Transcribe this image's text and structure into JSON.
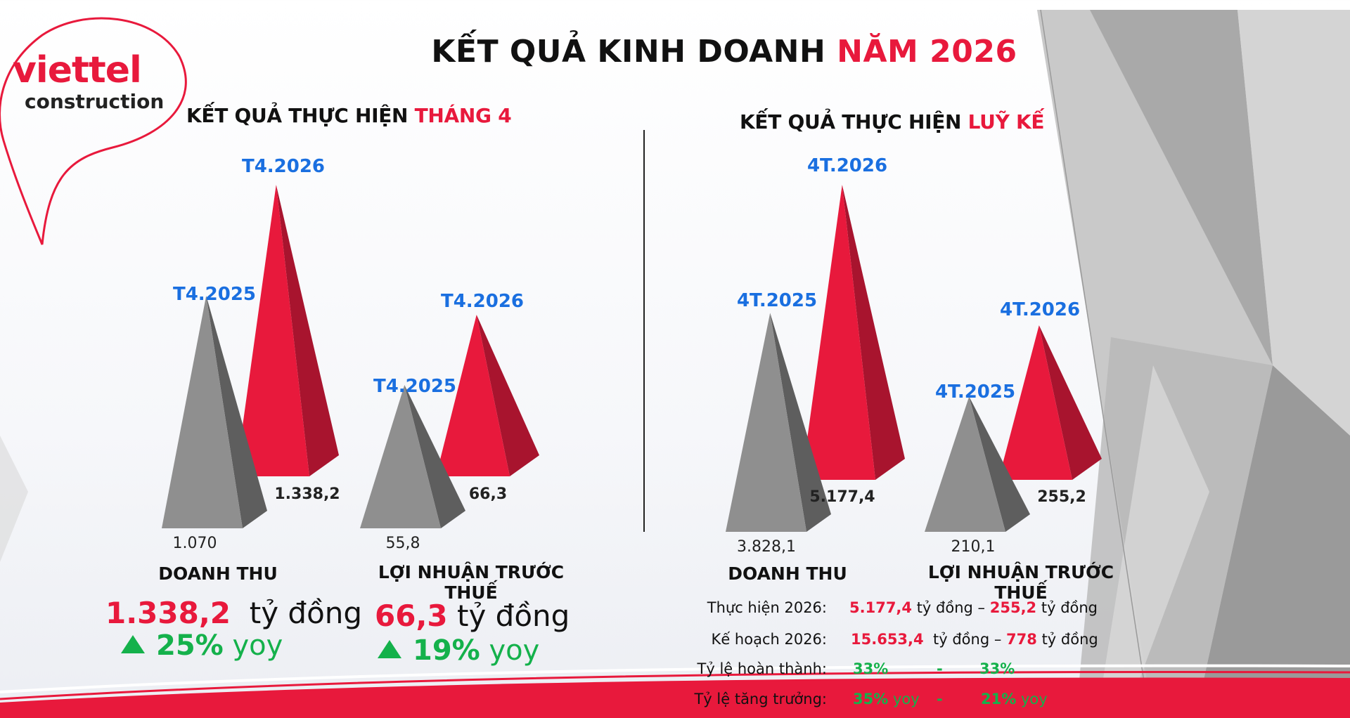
{
  "title": {
    "main": "KẾT QUẢ KINH DOANH",
    "highlight": "NĂM 2026"
  },
  "logo": {
    "brand": "viettel",
    "sub": "construction"
  },
  "colors": {
    "accent": "#e8193c",
    "gray": "#8f8f8f",
    "year_label": "#1a6fe0",
    "growth": "#14b14b"
  },
  "monthly": {
    "heading": "KẾT QUẢ THỰC HIỆN",
    "heading_highlight": "THÁNG 4",
    "revenue": {
      "category": "DOANH THU",
      "value": "1.338,2",
      "unit": "tỷ đồng",
      "growth": "25%",
      "growth_suffix": "yoy"
    },
    "profit": {
      "category": "LỢI NHUẬN TRƯỚC THUẾ",
      "value": "66,3",
      "unit": "tỷ đồng",
      "growth": "19%",
      "growth_suffix": "yoy"
    }
  },
  "cumulative": {
    "heading": "KẾT QUẢ THỰC HIỆN",
    "heading_highlight": "LUỸ KẾ",
    "revenue_category": "DOANH THU",
    "profit_category": "LỢI NHUẬN TRƯỚC THUẾ",
    "rows": [
      {
        "label": "Thực hiện 2026:",
        "v1": "5.177,4",
        "u1": "tỷ đồng –",
        "v2": "255,2",
        "u2": "tỷ đồng"
      },
      {
        "label": "Kế hoạch 2026:",
        "v1": "15.653,4",
        "u1": "tỷ đồng –",
        "v2": "778",
        "u2": "tỷ đồng"
      },
      {
        "label": "Tỷ lệ hoàn thành:",
        "v1": "33%",
        "u1": "-",
        "v2": "33%",
        "u2": ""
      },
      {
        "label": "Tỷ lệ tăng trưởng:",
        "v1": "35%",
        "u1": "yoy",
        "sep": "-",
        "v2": "21%",
        "u2": "yoy"
      }
    ]
  },
  "chart_data": [
    {
      "type": "bar",
      "categories": [
        "DOANH THU"
      ],
      "series": [
        {
          "name": "T4.2025",
          "values": [
            1070
          ]
        },
        {
          "name": "T4.2026",
          "values": [
            1338.2
          ]
        }
      ],
      "value_labels": [
        "1.070",
        "1.338,2"
      ]
    },
    {
      "type": "bar",
      "categories": [
        "LỢI NHUẬN TRƯỚC THUẾ"
      ],
      "series": [
        {
          "name": "T4.2025",
          "values": [
            55.8
          ]
        },
        {
          "name": "T4.2026",
          "values": [
            66.3
          ]
        }
      ],
      "value_labels": [
        "55,8",
        "66,3"
      ]
    },
    {
      "type": "bar",
      "categories": [
        "DOANH THU"
      ],
      "series": [
        {
          "name": "4T.2025",
          "values": [
            3828.1
          ]
        },
        {
          "name": "4T.2026",
          "values": [
            5177.4
          ]
        }
      ],
      "value_labels": [
        "3.828,1",
        "5.177,4"
      ]
    },
    {
      "type": "bar",
      "categories": [
        "LỢI NHUẬN TRƯỚC THUẾ"
      ],
      "series": [
        {
          "name": "4T.2025",
          "values": [
            210.1
          ]
        },
        {
          "name": "4T.2026",
          "values": [
            255.2
          ]
        }
      ],
      "value_labels": [
        "210,1",
        "255,2"
      ]
    }
  ]
}
